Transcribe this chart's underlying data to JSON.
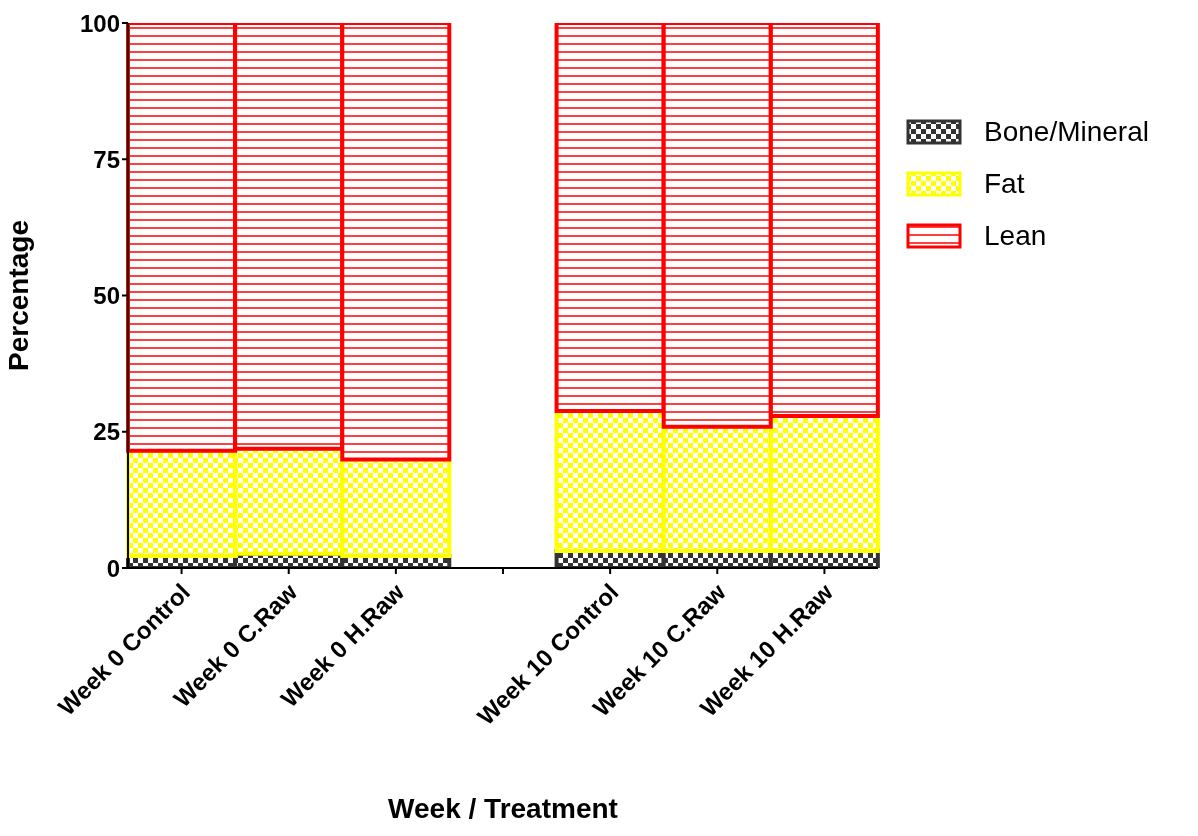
{
  "chart_data": {
    "type": "bar",
    "stacked": true,
    "xlabel": "Week / Treatment",
    "ylabel": "Percentage",
    "categories": [
      "Week 0 Control",
      "Week 0 C.Raw",
      "Week 0 H.Raw",
      null,
      "Week 10 Control",
      "Week 10 C.Raw",
      "Week 10 H.Raw"
    ],
    "series": [
      {
        "name": "Bone/Mineral",
        "color": "#333333",
        "values": [
          2.2,
          2.6,
          2.2,
          null,
          3.1,
          3.1,
          3.1
        ]
      },
      {
        "name": "Fat",
        "color": "#ffff00",
        "values": [
          19.3,
          19.3,
          17.7,
          null,
          25.7,
          22.8,
          24.8
        ]
      },
      {
        "name": "Lean",
        "color": "#ff0000",
        "values": [
          78.5,
          78.1,
          80.1,
          null,
          71.2,
          74.1,
          72.1
        ]
      }
    ],
    "ylim": [
      0,
      100
    ],
    "yticks": [
      0,
      25,
      50,
      75,
      100
    ],
    "legend": "top right"
  }
}
